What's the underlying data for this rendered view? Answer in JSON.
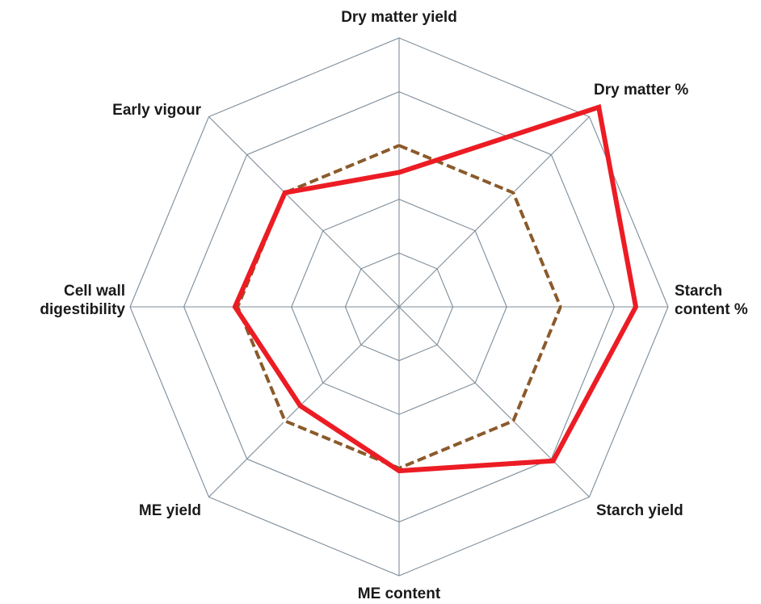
{
  "chart_data": {
    "type": "radar",
    "title": "",
    "axes": [
      {
        "lines": [
          "Dry matter yield"
        ]
      },
      {
        "lines": [
          "Dry matter %"
        ]
      },
      {
        "lines": [
          "Starch",
          "content %"
        ]
      },
      {
        "lines": [
          "Starch yield"
        ]
      },
      {
        "lines": [
          "ME content"
        ]
      },
      {
        "lines": [
          "ME yield"
        ]
      },
      {
        "lines": [
          "Cell wall",
          "digestibility"
        ]
      },
      {
        "lines": [
          "Early vigour"
        ]
      }
    ],
    "range": [
      0,
      5
    ],
    "rings": 5,
    "grid": true,
    "legend": "none",
    "series": [
      {
        "values": [
          2.5,
          5.25,
          4.4,
          4.05,
          3.05,
          2.6,
          3.05,
          3.0
        ],
        "color": "#ec1c24",
        "style": "solid"
      },
      {
        "values": [
          3.0,
          3.0,
          3.0,
          3.0,
          3.0,
          3.0,
          3.0,
          3.0
        ],
        "color": "#8b5a2b",
        "style": "dashed"
      }
    ],
    "colors": {
      "grid": "#7d8c99",
      "label": "#1a1a1a"
    }
  }
}
